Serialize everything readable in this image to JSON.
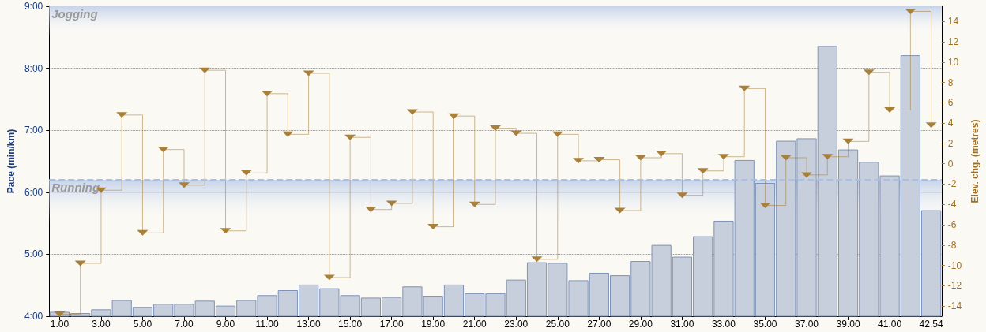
{
  "chart_data": {
    "type": "bar",
    "xlabel": null,
    "ylabel": "Pace (min/km)",
    "y2label": "Elev. chg. (metres)",
    "categories": [
      "1.00",
      null,
      "3.00",
      null,
      "5.00",
      null,
      "7.00",
      null,
      "9.00",
      null,
      "11.00",
      null,
      "13.00",
      null,
      "15.00",
      null,
      "17.00",
      null,
      "19.00",
      null,
      "21.00",
      null,
      "23.00",
      null,
      "25.00",
      null,
      "27.00",
      null,
      "29.00",
      null,
      "31.00",
      null,
      "33.00",
      null,
      "35.00",
      null,
      "37.00",
      null,
      "39.00",
      null,
      "41.00",
      null,
      "42.54"
    ],
    "series": [
      {
        "color": "#c8cfdc",
        "values": [
          4.07,
          4.05,
          4.11,
          4.26,
          4.15,
          4.2,
          4.2,
          4.25,
          4.17,
          4.26,
          4.34,
          4.42,
          4.51,
          4.45,
          4.34,
          4.3,
          4.31,
          4.48,
          4.33,
          4.51,
          4.37,
          4.37,
          4.59,
          4.87,
          4.86,
          4.58,
          4.7,
          4.66,
          4.89,
          5.15,
          4.96,
          5.29,
          5.54,
          6.52,
          6.15,
          6.83,
          6.87,
          8.36,
          6.69,
          6.49,
          6.27,
          8.21,
          5.71
        ]
      },
      {
        "type": "step",
        "axis": "y2",
        "color": "#a8803a",
        "marker": "triangle",
        "values": [
          -14.8,
          -9.8,
          -2.6,
          4.8,
          -6.8,
          1.4,
          -2.1,
          9.2,
          -6.6,
          -0.9,
          6.9,
          2.9,
          8.9,
          -11.2,
          2.6,
          -4.5,
          -3.9,
          5.1,
          -6.2,
          4.7,
          -4.0,
          3.5,
          3.0,
          -9.4,
          2.9,
          0.3,
          0.4,
          -4.6,
          0.6,
          1.0,
          -3.1,
          -0.7,
          0.7,
          7.4,
          -4.1,
          0.6,
          -1.1,
          0.7,
          2.2,
          9.0,
          5.3,
          15.0,
          3.8
        ]
      }
    ],
    "ylim": [
      4,
      9
    ],
    "yticks": [
      {
        "value": 4,
        "label": "4:00"
      },
      {
        "value": 5,
        "label": "5:00"
      },
      {
        "value": 6,
        "label": "6:00"
      },
      {
        "value": 7,
        "label": "7:00"
      },
      {
        "value": 8,
        "label": "8:00"
      },
      {
        "value": 9,
        "label": "9:00"
      }
    ],
    "y2lim": [
      -15,
      15.5
    ],
    "y2ticks": [
      -14,
      -12,
      -10,
      -8,
      -6,
      -4,
      -2,
      0,
      2,
      4,
      6,
      8,
      10,
      12,
      14
    ],
    "ref_lines": [
      {
        "axis": "y",
        "value": 6.2,
        "color": "#a9bfe6",
        "line_style": "dashed"
      }
    ],
    "bands": [
      {
        "axis": "y",
        "from": 8.5,
        "to": 9,
        "label": "Jogging",
        "color": "#c6d3ea"
      },
      {
        "axis": "y",
        "from": 5.5,
        "to": 6.2,
        "label": "Running",
        "color": "#c6d3ea"
      }
    ],
    "grid": "y"
  }
}
